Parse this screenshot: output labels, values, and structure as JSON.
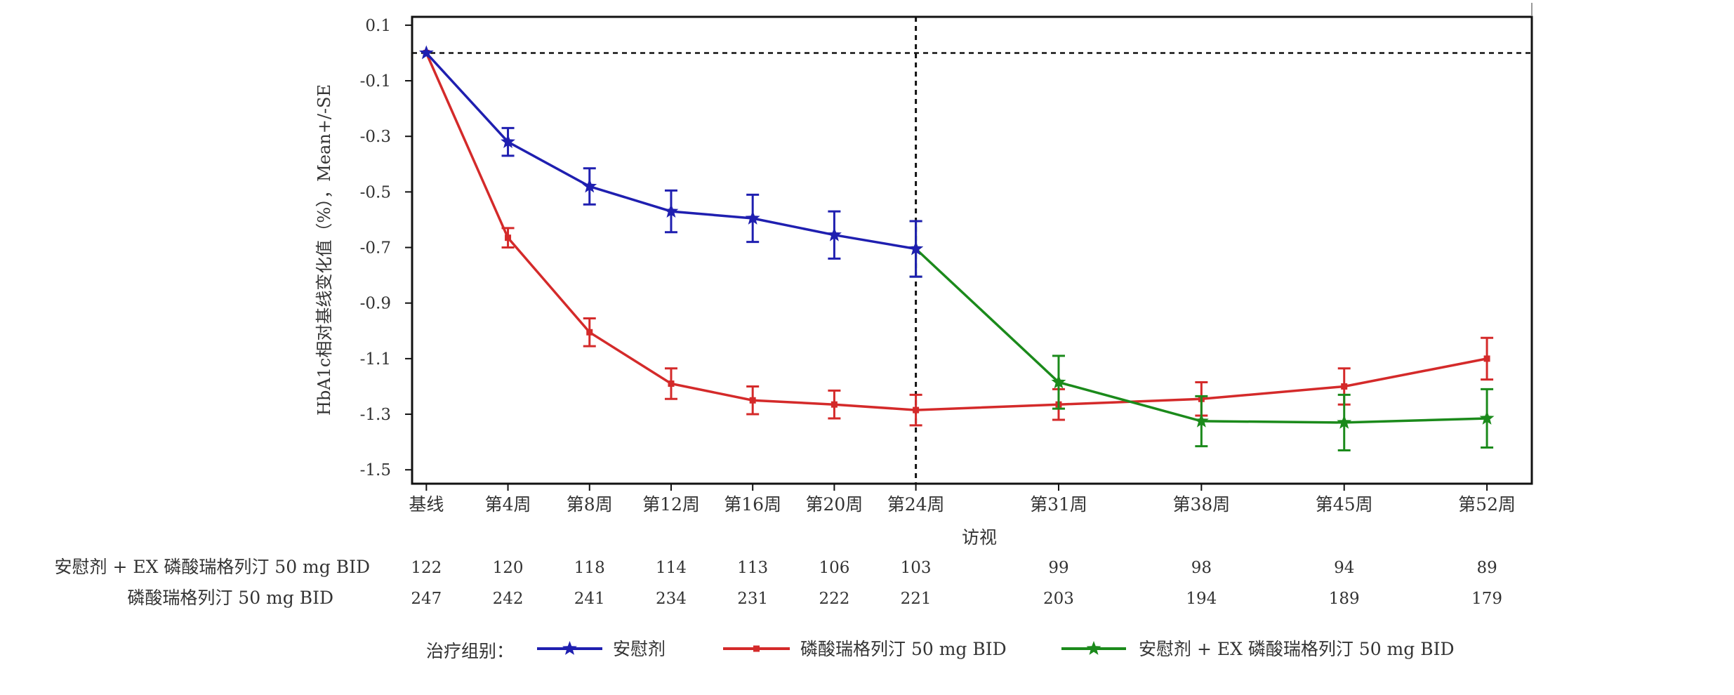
{
  "chart_data": {
    "type": "line",
    "title": "",
    "xlabel": "访视",
    "ylabel": "HbA1c相对基线变化值（%），Mean+/-SE",
    "ylim": [
      -1.55,
      0.13
    ],
    "yticks": [
      0.1,
      -0.1,
      -0.3,
      -0.5,
      -0.7,
      -0.9,
      -1.1,
      -1.3,
      -1.5
    ],
    "categories": [
      "基线",
      "第4周",
      "第8周",
      "第12周",
      "第16周",
      "第20周",
      "第24周",
      "第31周",
      "第38周",
      "第45周",
      "第52周"
    ],
    "x": [
      0,
      4,
      8,
      12,
      16,
      20,
      24,
      31,
      38,
      45,
      52
    ],
    "xlim": [
      -0.7,
      54.2
    ],
    "reference_lines": {
      "horizontal_y": 0.0,
      "vertical_x": 24
    },
    "grid": false,
    "series": [
      {
        "name": "安慰剂",
        "color": "#1f1fb0",
        "marker": "star",
        "x": [
          0,
          4,
          8,
          12,
          16,
          20,
          24
        ],
        "values": [
          0.0,
          -0.32,
          -0.48,
          -0.57,
          -0.595,
          -0.655,
          -0.705
        ],
        "se": [
          0.0,
          0.05,
          0.065,
          0.075,
          0.085,
          0.085,
          0.1
        ]
      },
      {
        "name": "磷酸瑞格列汀 50 mg BID",
        "color": "#d42a2a",
        "marker": "square",
        "x": [
          0,
          4,
          8,
          12,
          16,
          20,
          24,
          31,
          38,
          45,
          52
        ],
        "values": [
          0.0,
          -0.665,
          -1.005,
          -1.19,
          -1.25,
          -1.265,
          -1.285,
          -1.265,
          -1.245,
          -1.2,
          -1.1
        ],
        "se": [
          0.0,
          0.035,
          0.05,
          0.055,
          0.05,
          0.05,
          0.055,
          0.055,
          0.06,
          0.065,
          0.075
        ]
      },
      {
        "name": "安慰剂 + EX 磷酸瑞格列汀 50 mg BID",
        "color": "#1b8a1b",
        "marker": "star",
        "x": [
          24,
          31,
          38,
          45,
          52
        ],
        "values": [
          -0.705,
          -1.185,
          -1.325,
          -1.33,
          -1.315
        ],
        "se": [
          0.1,
          0.095,
          0.09,
          0.1,
          0.105
        ]
      }
    ],
    "legend": {
      "placement": "bottom",
      "title": "治疗组别：",
      "entries": [
        "安慰剂",
        "磷酸瑞格列汀 50 mg BID",
        "安慰剂 + EX 磷酸瑞格列汀 50 mg BID"
      ]
    },
    "risk_table": {
      "rows": [
        {
          "label": "安慰剂 + EX 磷酸瑞格列汀 50 mg BID",
          "values": [
            122,
            120,
            118,
            114,
            113,
            106,
            103,
            99,
            98,
            94,
            89
          ]
        },
        {
          "label": "磷酸瑞格列汀 50 mg BID",
          "values": [
            247,
            242,
            241,
            234,
            231,
            222,
            221,
            203,
            194,
            189,
            179
          ]
        }
      ]
    }
  }
}
